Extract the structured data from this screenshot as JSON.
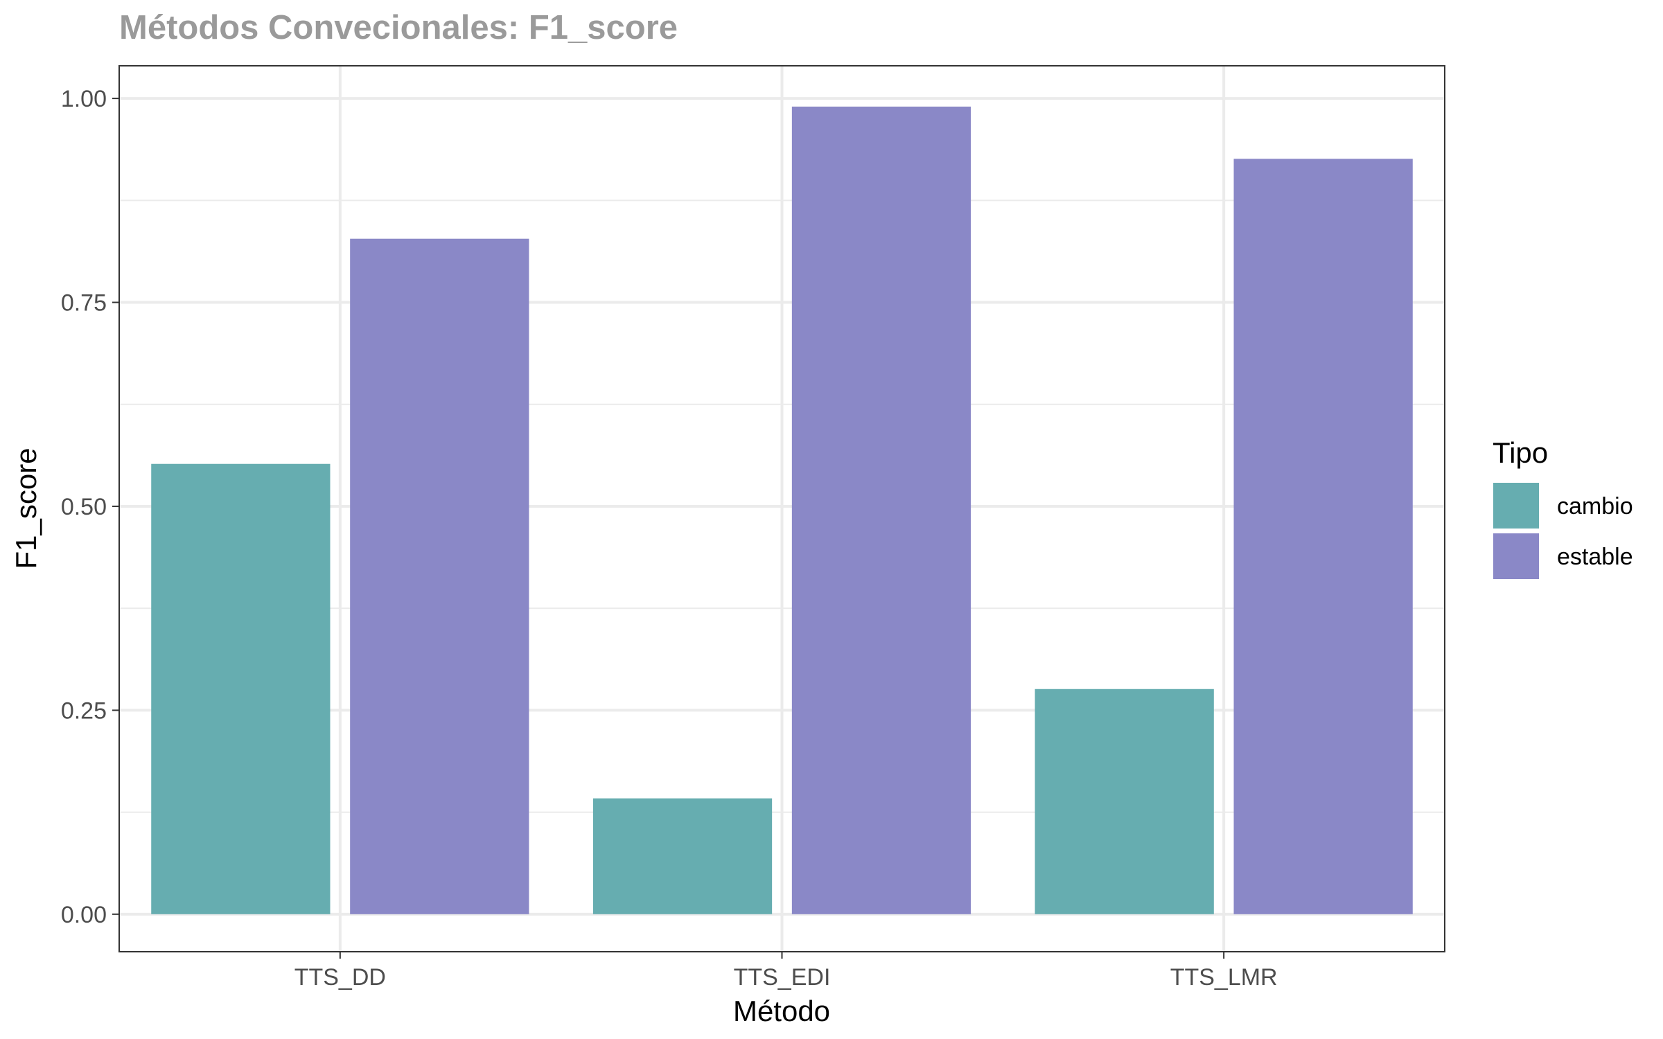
{
  "chart_data": {
    "type": "bar",
    "title": "Métodos Convecionales: F1_score",
    "xlabel": "Método",
    "ylabel": "F1_score",
    "categories": [
      "TTS_DD",
      "TTS_EDI",
      "TTS_LMR"
    ],
    "series": [
      {
        "name": "cambio",
        "values": [
          0.552,
          0.142,
          0.276
        ],
        "color": "#66adb0"
      },
      {
        "name": "estable",
        "values": [
          0.828,
          0.99,
          0.926
        ],
        "color": "#8a88c7"
      }
    ],
    "ylim": [
      -0.046,
      1.04
    ],
    "yticks": [
      0.0,
      0.25,
      0.5,
      0.75,
      1.0
    ],
    "ytick_labels": [
      "0.00",
      "0.25",
      "0.50",
      "0.75",
      "1.00"
    ],
    "grid": true,
    "legend": {
      "title": "Tipo",
      "position": "right"
    }
  }
}
